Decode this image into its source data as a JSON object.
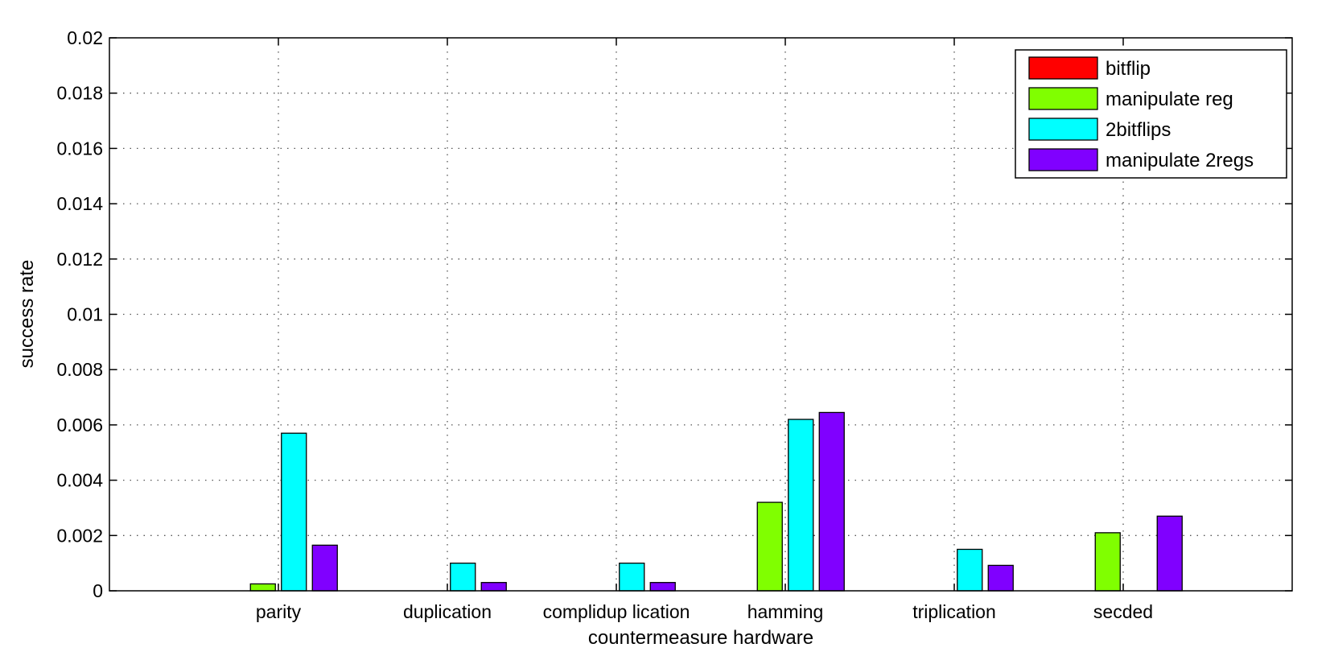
{
  "chart_data": {
    "type": "bar",
    "categories": [
      "parity",
      "duplication",
      "complidup lication",
      "hamming",
      "triplication",
      "secded"
    ],
    "series": [
      {
        "name": "bitflip",
        "color": "#ff0000",
        "values": [
          0,
          0,
          0,
          0,
          0,
          0
        ]
      },
      {
        "name": "manipulate reg",
        "color": "#80ff00",
        "values": [
          0.00025,
          0,
          0,
          0.0032,
          0,
          0.0021
        ]
      },
      {
        "name": "2bitflips",
        "color": "#00ffff",
        "values": [
          0.0057,
          0.001,
          0.001,
          0.0062,
          0.0015,
          0
        ]
      },
      {
        "name": "manipulate 2regs",
        "color": "#8000ff",
        "values": [
          0.00165,
          0.0003,
          0.0003,
          0.00645,
          0.00092,
          0.0027
        ]
      }
    ],
    "title": "",
    "xlabel": "countermeasure hardware",
    "ylabel": "success rate",
    "ylim": [
      0,
      0.02
    ],
    "yticks": [
      "0",
      "0.002",
      "0.004",
      "0.006",
      "0.008",
      "0.01",
      "0.012",
      "0.014",
      "0.016",
      "0.018",
      "0.02"
    ],
    "grid": true,
    "legend_position": "top-right"
  }
}
